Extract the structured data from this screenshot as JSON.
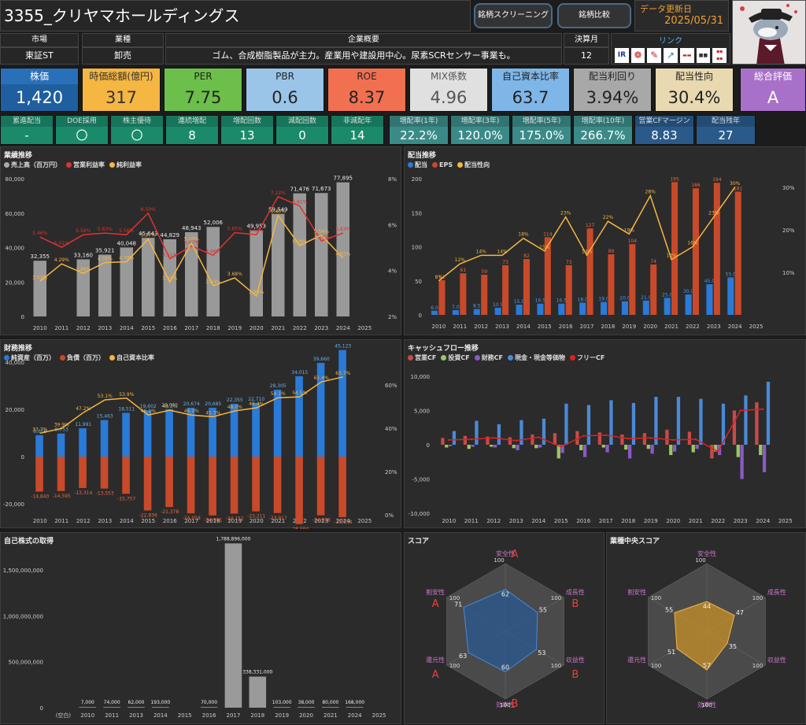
{
  "header": {
    "title": "3355_クリヤマホールディングス",
    "btn_screen": "銘柄スクリーニング",
    "btn_compare": "銘柄比較",
    "update_label": "データ更新日",
    "update_date": "2025/05/31"
  },
  "info": {
    "market_label": "市場",
    "market": "東証ST",
    "industry_label": "業種",
    "industry": "卸売",
    "overview_label": "企業概要",
    "overview": "ゴム、合成樹脂製品が主力。産業用や建設用中心。尿素SCRセンサー事業も。",
    "fiscal_label": "決算月",
    "fiscal": "12",
    "link_label": "リンク"
  },
  "kpi": [
    {
      "label": "株価",
      "value": "1,420",
      "bg": "#1f5fa0",
      "lbg": "#2a70b8",
      "fg": "#fff"
    },
    {
      "label": "時価総額(億円)",
      "value": "317",
      "bg": "#f5b642",
      "lbg": "#f5b642",
      "fg": "#333"
    },
    {
      "label": "PER",
      "value": "7.75",
      "bg": "#6cbf4a",
      "lbg": "#6cbf4a",
      "fg": "#222"
    },
    {
      "label": "PBR",
      "value": "0.6",
      "bg": "#9ac5e8",
      "lbg": "#9ac5e8",
      "fg": "#222"
    },
    {
      "label": "ROE",
      "value": "8.37",
      "bg": "#f07050",
      "lbg": "#f07050",
      "fg": "#222"
    },
    {
      "label": "MIX係数",
      "value": "4.96",
      "bg": "#e0e0e0",
      "lbg": "#e0e0e0",
      "fg": "#555"
    },
    {
      "label": "自己資本比率",
      "value": "63.7",
      "bg": "#7fb6e8",
      "lbg": "#7fb6e8",
      "fg": "#222"
    },
    {
      "label": "配当利回り",
      "value": "3.94%",
      "bg": "#a8a8a8",
      "lbg": "#a8a8a8",
      "fg": "#222"
    },
    {
      "label": "配当性向",
      "value": "30.4%",
      "bg": "#e8d9b0",
      "lbg": "#e8d9b0",
      "fg": "#222"
    },
    {
      "label": "総合評価",
      "value": "A",
      "bg": "#a870c8",
      "lbg": "#a870c8",
      "fg": "#fff"
    }
  ],
  "stats": [
    {
      "label": "累進配当",
      "value": "-",
      "bg": "#1a8a6a"
    },
    {
      "label": "DOE採用",
      "value": "〇",
      "bg": "#1a8a6a"
    },
    {
      "label": "株主優待",
      "value": "〇",
      "bg": "#1a8a6a"
    },
    {
      "label": "連続増配",
      "value": "8",
      "bg": "#1a8a6a"
    },
    {
      "label": "増配回数",
      "value": "13",
      "bg": "#1a8a6a"
    },
    {
      "label": "減配回数",
      "value": "0",
      "bg": "#1a8a6a"
    },
    {
      "label": "非減配年",
      "value": "14",
      "bg": "#1a8a6a"
    },
    {
      "label": "増配率(1年)",
      "value": "22.2%",
      "bg": "#3a8a88"
    },
    {
      "label": "増配率(3年)",
      "value": "120.0%",
      "bg": "#3a8a88"
    },
    {
      "label": "増配率(5年)",
      "value": "175.0%",
      "bg": "#3a8a88"
    },
    {
      "label": "増配率(10年)",
      "value": "266.7%",
      "bg": "#3a8a88"
    },
    {
      "label": "営業CFマージン",
      "value": "8.83",
      "bg": "#2a5a8a"
    },
    {
      "label": "配当残年",
      "value": "27",
      "bg": "#2a5a8a"
    }
  ],
  "panels": {
    "perf": "業績推移",
    "div": "配当推移",
    "fin": "財務推移",
    "cf": "キャッシュフロー推移",
    "buyback": "自己株式の取得",
    "score": "スコア",
    "ind": "業種中央スコア"
  },
  "legends": {
    "perf": [
      "売上高（百万円）",
      "営業利益率",
      "純利益率"
    ],
    "div": [
      "配当",
      "EPS",
      "配当性向"
    ],
    "fin": [
      "純資産（百万）",
      "負債（百万）",
      "自己資本比率"
    ],
    "cf": [
      "営業CF",
      "投資CF",
      "財務CF",
      "現金・現金等価物",
      "フリーCF"
    ]
  },
  "chart_data": [
    {
      "type": "bar",
      "id": "perf",
      "categories": [
        "2010",
        "2011",
        "2012",
        "2013",
        "2014",
        "2015",
        "2016",
        "2017",
        "2018",
        "2019",
        "2020",
        "2021",
        "2022",
        "2023",
        "2024",
        "2025"
      ],
      "series": [
        {
          "name": "売上高（百万円）",
          "values": [
            32355,
            null,
            33160,
            35921,
            40048,
            45643,
            44829,
            48943,
            52006,
            null,
            49953,
            59549,
            71476,
            71673,
            77895,
            null
          ]
        },
        {
          "name": "営業利益率",
          "values": [
            5.46,
            5.01,
            5.56,
            5.63,
            5.56,
            6.5,
            4.51,
            5.07,
            4.66,
            5.65,
            5.56,
            7.22,
            6.81,
            5.29,
            5.63,
            null
          ]
        },
        {
          "name": "純利益率",
          "values": [
            3.53,
            4.29,
            3.88,
            4.35,
            4.38,
            5.37,
            3.5,
            5.2,
            3.34,
            3.68,
            2.89,
            6.4,
            5.09,
            5.54,
            4.55,
            null
          ]
        }
      ],
      "yticks": [
        "0",
        "20,000",
        "40,000",
        "60,000",
        "80,000"
      ],
      "y2ticks": [
        "2%",
        "4%",
        "6%",
        "8%"
      ]
    },
    {
      "type": "bar",
      "id": "div",
      "categories": [
        "2010",
        "2011",
        "2012",
        "2013",
        "2014",
        "2015",
        "2016",
        "2017",
        "2018",
        "2019",
        "2020",
        "2021",
        "2022",
        "2023",
        "2024",
        "2025"
      ],
      "series": [
        {
          "name": "配当",
          "values": [
            6.0,
            7.0,
            8.5,
            10.5,
            15.0,
            16.5,
            16.5,
            18.0,
            19.0,
            20.0,
            21.0,
            25.0,
            30.0,
            45.0,
            55.0,
            null
          ]
        },
        {
          "name": "EPS",
          "values": [
            51,
            61,
            59,
            73,
            82,
            114,
            73,
            127,
            89,
            104,
            74,
            195,
            186,
            194,
            181,
            null
          ]
        },
        {
          "name": "配当性向",
          "values": [
            8,
            12,
            14,
            14,
            18,
            15,
            23,
            14,
            22,
            19,
            28,
            13,
            16,
            23,
            30,
            null
          ]
        }
      ],
      "yticks": [
        "0",
        "50",
        "100",
        "150",
        "200"
      ],
      "y2ticks": [
        "10%",
        "20%",
        "30%"
      ]
    },
    {
      "type": "bar",
      "id": "fin",
      "categories": [
        "2010",
        "2011",
        "2012",
        "2013",
        "2014",
        "2015",
        "2016",
        "2017",
        "2018",
        "2019",
        "2020",
        "2021",
        "2022",
        "2023",
        "2024",
        "2025"
      ],
      "series": [
        {
          "name": "純資産（百万）",
          "values": [
            9056,
            9753,
            11991,
            15463,
            18511,
            19602,
            20095,
            20674,
            20685,
            22355,
            22710,
            28305,
            34015,
            39660,
            45123,
            null
          ]
        },
        {
          "name": "負債（百万）",
          "values": [
            -14840,
            -14595,
            -13314,
            -13553,
            -15757,
            -22836,
            -21378,
            -24058,
            -24901,
            -24152,
            -23211,
            -23917,
            -28594,
            -24878,
            -25658,
            null
          ]
        },
        {
          "name": "自己資本比率",
          "values": [
            37.7,
            39.9,
            47.2,
            53.1,
            53.9,
            46.1,
            48.3,
            46.1,
            45.3,
            48.0,
            49.4,
            54.1,
            54.5,
            61.4,
            63.7,
            null
          ]
        }
      ],
      "yticks": [
        "-20,000",
        "0",
        "20,000",
        "40,000"
      ],
      "y2ticks": [
        "0%",
        "20%",
        "40%",
        "60%"
      ]
    },
    {
      "type": "bar",
      "id": "cf",
      "categories": [
        "2010",
        "2011",
        "2012",
        "2013",
        "2014",
        "2015",
        "2016",
        "2017",
        "2018",
        "2019",
        "2020",
        "2021",
        "2022",
        "2023",
        "2024",
        "2025"
      ],
      "series": [
        {
          "name": "営業CF",
          "values": [
            1000,
            1300,
            1200,
            1100,
            1500,
            1700,
            2000,
            1800,
            1500,
            1700,
            2200,
            1900,
            -2000,
            5000,
            6200,
            null
          ]
        },
        {
          "name": "投資CF",
          "values": [
            -400,
            -600,
            -300,
            -500,
            -500,
            -2000,
            -800,
            -400,
            -700,
            -600,
            -1500,
            -1100,
            -1000,
            -1800,
            -1500,
            null
          ]
        },
        {
          "name": "財務CF",
          "values": [
            -200,
            -300,
            -400,
            -800,
            -400,
            -1200,
            -1800,
            -1100,
            -2000,
            -1300,
            -1000,
            -600,
            -1500,
            -5000,
            -4000,
            null
          ]
        },
        {
          "name": "現金・現金等価物",
          "values": [
            2000,
            3500,
            3000,
            3600,
            3800,
            6000,
            5800,
            6500,
            6100,
            7000,
            7000,
            6700,
            6000,
            7200,
            9200,
            null
          ]
        },
        {
          "name": "フリーCF",
          "values": [
            700,
            800,
            1000,
            600,
            1100,
            -300,
            1300,
            1400,
            900,
            1000,
            700,
            800,
            -1000,
            5000,
            5200,
            null
          ]
        }
      ],
      "yticks": [
        "-10,000",
        "-5,000",
        "0",
        "5,000",
        "10,000"
      ]
    },
    {
      "type": "bar",
      "id": "buyback",
      "categories": [
        "(空白)",
        "2010",
        "2011",
        "2013",
        "2014",
        "2015",
        "2016",
        "2017",
        "2018",
        "2019",
        "2020",
        "2021",
        "2024",
        "2025"
      ],
      "values": [
        null,
        7000,
        74000,
        62000,
        193000,
        null,
        70000,
        1788896000,
        338331000,
        103000,
        38000,
        80000,
        168000,
        null
      ],
      "labels": [
        "",
        "7,000",
        "74,000",
        "62,000",
        "193,000",
        "",
        "70,000",
        "1,788,896,000",
        "338,331,000",
        "103,000",
        "38,000",
        "80,000",
        "168,000",
        ""
      ],
      "yticks": [
        "0",
        "500,000,000",
        "1,000,000,000",
        "1,500,000,000"
      ]
    },
    {
      "type": "radar",
      "id": "score",
      "axes": [
        "安全性",
        "成長性",
        "収益性",
        "効率性",
        "還元性",
        "割安性"
      ],
      "values": [
        62,
        55,
        53,
        60,
        63,
        71
      ],
      "grades": [
        "A",
        "B",
        "B",
        "B",
        "A",
        "A"
      ],
      "max": "100"
    },
    {
      "type": "radar",
      "id": "ind",
      "axes": [
        "安全性",
        "成長性",
        "収益性",
        "効率性",
        "還元性",
        "割安性"
      ],
      "values": [
        44,
        47,
        35,
        57,
        51,
        55
      ],
      "max": "100"
    }
  ]
}
